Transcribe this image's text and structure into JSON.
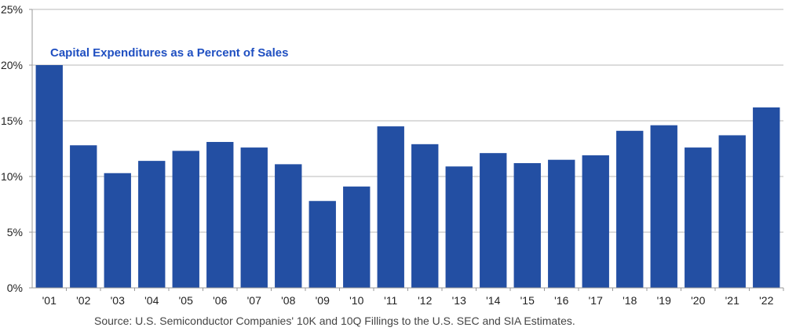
{
  "chart_data": {
    "type": "bar",
    "title": "Capital Expenditures as a Percent of Sales",
    "xlabel": "",
    "ylabel": "",
    "categories": [
      "'01",
      "'02",
      "'03",
      "'04",
      "'05",
      "'06",
      "'07",
      "'08",
      "'09",
      "'10",
      "'11",
      "'12",
      "'13",
      "'14",
      "'15",
      "'16",
      "'17",
      "'18",
      "'19",
      "'20",
      "'21",
      "'22"
    ],
    "values": [
      20.0,
      12.8,
      10.3,
      11.4,
      12.3,
      13.1,
      12.6,
      11.1,
      7.8,
      9.1,
      14.5,
      12.9,
      10.9,
      12.1,
      11.2,
      11.5,
      11.9,
      14.1,
      14.6,
      12.6,
      13.7,
      16.2
    ],
    "ylim": [
      0,
      25
    ],
    "yticks": [
      0,
      5,
      10,
      15,
      20,
      25
    ],
    "ytick_labels": [
      "0%",
      "5%",
      "10%",
      "15%",
      "20%",
      "25%"
    ],
    "grid": true,
    "bar_color": "#234fa3",
    "title_color": "#1f4fc1",
    "source": "Source: U.S. Semiconductor Companies' 10K and 10Q Fillings to the U.S. SEC and SIA Estimates."
  }
}
